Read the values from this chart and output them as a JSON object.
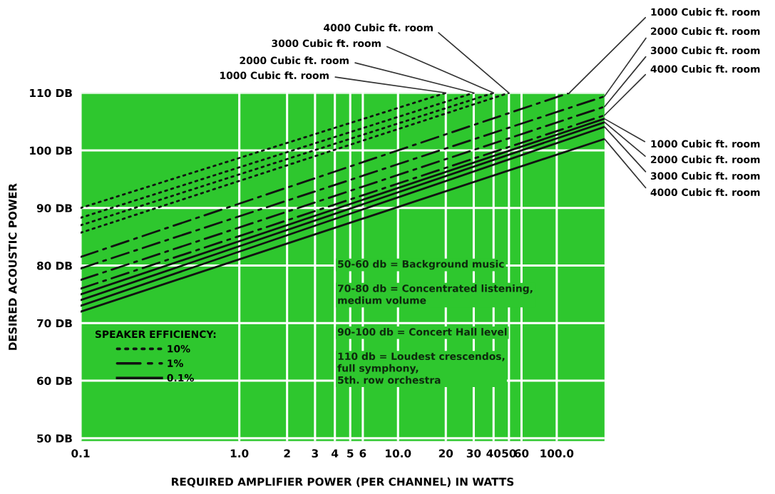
{
  "chart_data": {
    "type": "line",
    "xlabel": "REQUIRED AMPLIFIER POWER (PER CHANNEL) IN WATTS",
    "ylabel": "DESIRED ACOUSTIC POWER",
    "legend_title": "SPEAKER EFFICIENCY:",
    "log": "x",
    "xlim": [
      0.1,
      200
    ],
    "ylim": [
      49.5,
      110
    ],
    "xticks": [
      0.1,
      {
        "value": 1,
        "label": "1.0"
      },
      2,
      3,
      4,
      5,
      6,
      {
        "value": 10,
        "label": "10.0"
      },
      20,
      30,
      40,
      50,
      60,
      {
        "value": 100,
        "label": "100.0"
      }
    ],
    "yticks": [
      {
        "value": 50,
        "label": "50 DB"
      },
      {
        "value": 60,
        "label": "60 DB"
      },
      {
        "value": 70,
        "label": "70 DB"
      },
      {
        "value": 80,
        "label": "80 DB"
      },
      {
        "value": 90,
        "label": "90 DB"
      },
      {
        "value": 100,
        "label": "100 DB"
      },
      {
        "value": 110,
        "label": "110 DB"
      }
    ],
    "grid": true,
    "legend": "bottom left",
    "series": [
      {
        "name": "10%",
        "line_style": "dotted",
        "color": "#111111",
        "x": [
          0.1,
          20
        ],
        "values": [
          90,
          110
        ]
      },
      {
        "line_style": "dotted",
        "color": "#111111",
        "x": [
          0.1,
          30
        ],
        "values": [
          88.3,
          110
        ]
      },
      {
        "line_style": "dotted",
        "color": "#111111",
        "x": [
          0.1,
          40
        ],
        "values": [
          87,
          110
        ]
      },
      {
        "line_style": "dotted",
        "color": "#111111",
        "x": [
          0.1,
          50
        ],
        "values": [
          85.7,
          110
        ]
      },
      {
        "name": "1%",
        "line_style": "dashdot",
        "color": "#111111",
        "x": [
          0.1,
          120
        ],
        "values": [
          81.5,
          110
        ]
      },
      {
        "line_style": "dashdot",
        "color": "#111111",
        "x": [
          0.1,
          200
        ],
        "values": [
          79.5,
          109.4
        ]
      },
      {
        "line_style": "dashdot",
        "color": "#111111",
        "x": [
          0.1,
          200
        ],
        "values": [
          77.5,
          107.6
        ]
      },
      {
        "line_style": "dashdot",
        "color": "#111111",
        "x": [
          0.1,
          200
        ],
        "values": [
          76,
          106.1
        ]
      },
      {
        "name": "0.1%",
        "line_style": "solid",
        "color": "#111111",
        "x": [
          0.1,
          200
        ],
        "values": [
          75,
          105.5
        ]
      },
      {
        "line_style": "solid",
        "color": "#111111",
        "x": [
          0.1,
          200
        ],
        "values": [
          74,
          104.9
        ]
      },
      {
        "line_style": "solid",
        "color": "#111111",
        "x": [
          0.1,
          200
        ],
        "values": [
          73,
          104.1
        ]
      },
      {
        "line_style": "solid",
        "color": "#111111",
        "x": [
          0.1,
          200
        ],
        "values": [
          72,
          102
        ]
      }
    ],
    "annotations": [
      {
        "text": "1000 Cubic ft. room",
        "x": 20,
        "y": 110
      },
      {
        "text": "2000 Cubic ft. room",
        "x": 30,
        "y": 110
      },
      {
        "text": "3000 Cubic ft. room",
        "x": 40,
        "y": 110
      },
      {
        "text": "4000 Cubic ft. room",
        "x": 50,
        "y": 110
      },
      {
        "text": "1000 Cubic ft. room",
        "x": 120,
        "y": 110
      },
      {
        "text": "2000 Cubic ft. room",
        "x": 200,
        "y": 109.4
      },
      {
        "text": "3000 Cubic ft. room",
        "x": 200,
        "y": 107.6
      },
      {
        "text": "4000 Cubic ft. room",
        "x": 200,
        "y": 106.1
      },
      {
        "text": "1000 Cubic ft. room",
        "x": 200,
        "y": 105.5
      },
      {
        "text": "2000 Cubic ft. room",
        "x": 200,
        "y": 104.9
      },
      {
        "text": "3000 Cubic ft. room",
        "x": 200,
        "y": 104.1
      },
      {
        "text": "4000 Cubic ft. room",
        "x": 200,
        "y": 102
      },
      "50-60 db = Background music",
      "70-80 db = Concentrated listening,\nmedium volume",
      "90-100 db = Concert Hall level",
      "110 db = Loudest crescendos,\nfull symphony,\n5th. row orchestra"
    ]
  }
}
